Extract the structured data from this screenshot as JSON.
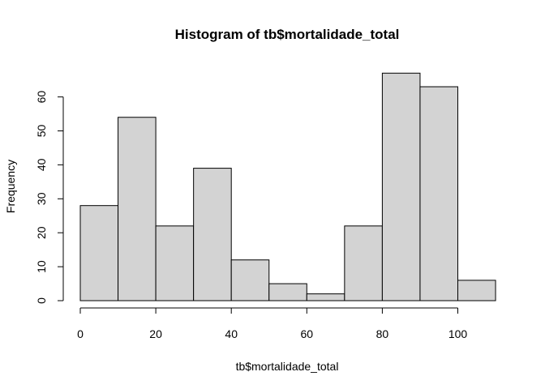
{
  "chart_data": {
    "type": "bar",
    "title": "Histogram of tb$mortalidade_total",
    "xlabel": "tb$mortalidade_total",
    "ylabel": "Frequency",
    "bins": [
      {
        "start": 0,
        "end": 10,
        "count": 28
      },
      {
        "start": 10,
        "end": 20,
        "count": 54
      },
      {
        "start": 20,
        "end": 30,
        "count": 22
      },
      {
        "start": 30,
        "end": 40,
        "count": 39
      },
      {
        "start": 40,
        "end": 50,
        "count": 12
      },
      {
        "start": 50,
        "end": 60,
        "count": 5
      },
      {
        "start": 60,
        "end": 70,
        "count": 2
      },
      {
        "start": 70,
        "end": 80,
        "count": 22
      },
      {
        "start": 80,
        "end": 90,
        "count": 67
      },
      {
        "start": 90,
        "end": 100,
        "count": 63
      },
      {
        "start": 100,
        "end": 110,
        "count": 6
      }
    ],
    "xlim": [
      0,
      110
    ],
    "ylim": [
      0,
      67
    ],
    "x_ticks": [
      0,
      20,
      40,
      60,
      80,
      100
    ],
    "y_ticks": [
      0,
      10,
      20,
      30,
      40,
      50,
      60
    ],
    "colors": {
      "bar_fill": "#d3d3d3",
      "bar_stroke": "#000000"
    }
  }
}
